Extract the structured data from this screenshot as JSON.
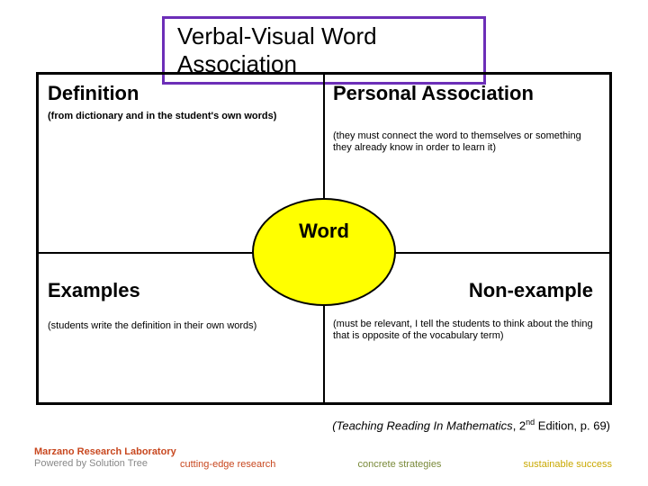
{
  "title": "Verbal-Visual Word Association",
  "title_border_color": "#6c2eb8",
  "grid": {
    "border_color": "#000000",
    "center_label": "Word",
    "center_bg": "#ffff00",
    "quadrants": {
      "top_left": {
        "title": "Definition",
        "subtitle": "(from dictionary and in the student's own words)"
      },
      "top_right": {
        "title": "Personal Association",
        "subtitle": "(they must connect the word to themselves or something they already know in order to learn it)"
      },
      "bottom_left": {
        "title": "Examples",
        "subtitle": "(students write the definition in their own words)"
      },
      "bottom_right": {
        "title": "Non-example",
        "subtitle": "(must be relevant, I tell the students to think about the thing that is opposite of the vocabulary term)"
      }
    }
  },
  "citation": {
    "book": "(Teaching Reading In Mathematics",
    "edition_pre": ", 2",
    "edition_sup": "nd",
    "rest": " Edition, p. 69)"
  },
  "brand": {
    "line1": "Marzano Research Laboratory",
    "line2": "Powered by Solution Tree"
  },
  "taglines": {
    "t1": "cutting-edge research",
    "t2": "concrete strategies",
    "t3": "sustainable success"
  },
  "colors": {
    "tag1": "#c84820",
    "tag2": "#7a8a3a",
    "tag3": "#c9a800",
    "brand_top": "#c84820",
    "brand_bot": "#888888"
  }
}
